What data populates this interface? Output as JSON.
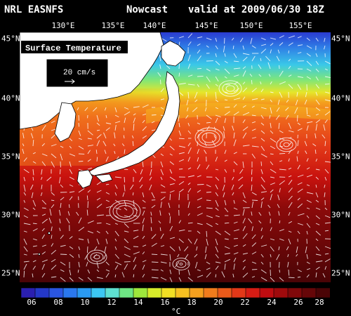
{
  "header": {
    "model": "NRL EASNFS",
    "product": "Nowcast",
    "valid": "valid at 2009/06/30 18Z"
  },
  "map": {
    "title": "Surface Temperature",
    "legend_arrow_label": "20 cm/s",
    "lon_labels": [
      "130°E",
      "135°E",
      "140°E",
      "145°E",
      "150°E",
      "155°E"
    ],
    "lat_labels": [
      "45°N",
      "40°N",
      "35°N",
      "30°N",
      "25°N"
    ],
    "colors": {
      "land": "#ffffff",
      "background": "#000000",
      "vector": "#ffffff"
    }
  },
  "colorbar": {
    "labels": [
      "06",
      "08",
      "10",
      "12",
      "14",
      "16",
      "18",
      "20",
      "22",
      "24",
      "26",
      "28"
    ],
    "units": "°C",
    "colors": [
      "#2a1fb0",
      "#2438c8",
      "#2a55e0",
      "#2a78ee",
      "#2a9af2",
      "#3cc6f2",
      "#5ee0d0",
      "#6ee684",
      "#9ee83c",
      "#d8ec2a",
      "#f2e024",
      "#f6c020",
      "#f4a01e",
      "#f07c1c",
      "#ea5a1a",
      "#e23818",
      "#d61c14",
      "#c00c10",
      "#a00a0c",
      "#80080a",
      "#660608",
      "#4a0406"
    ]
  }
}
